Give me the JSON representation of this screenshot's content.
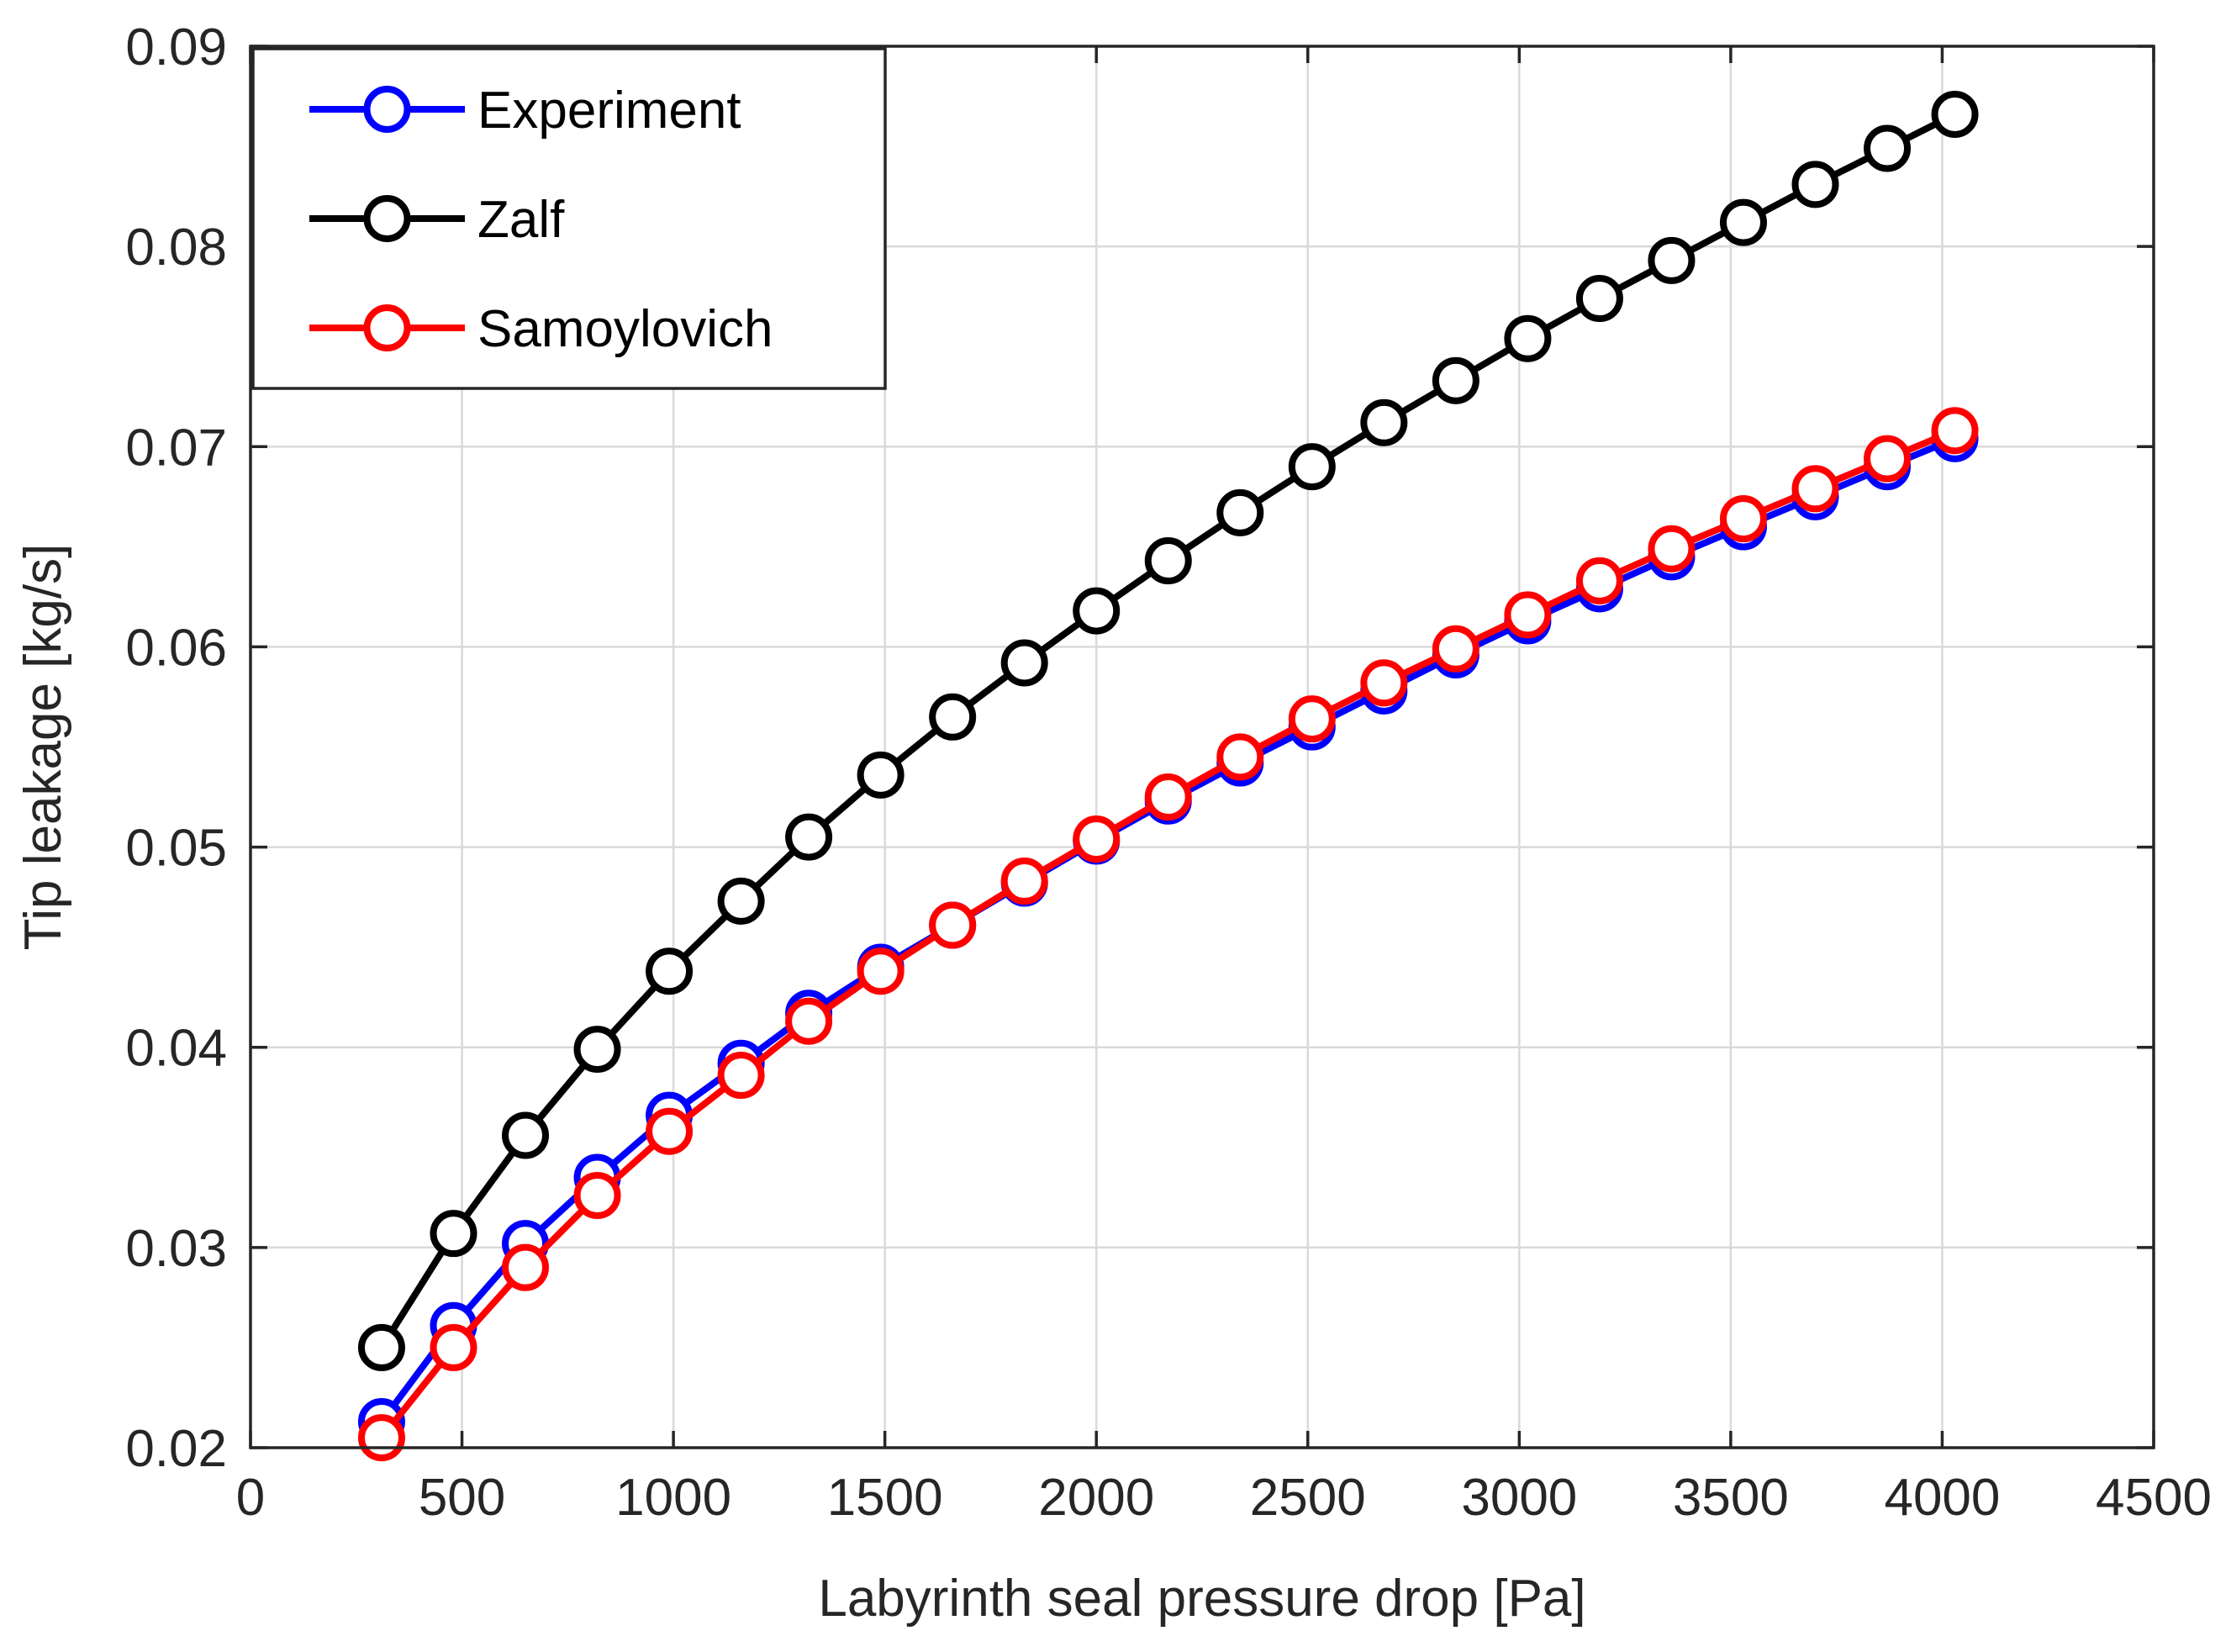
{
  "chart_data": {
    "type": "line",
    "title": "",
    "xlabel": "Labyrinth seal pressure drop [Pa]",
    "ylabel": "Tip leakage [kg/s]",
    "xlim": [
      0,
      4500
    ],
    "ylim": [
      0.02,
      0.09
    ],
    "xticks": [
      0,
      500,
      1000,
      1500,
      2000,
      2500,
      3000,
      3500,
      4000,
      4500
    ],
    "xtick_labels": [
      "0",
      "500",
      "1000",
      "1500",
      "2000",
      "2500",
      "3000",
      "3500",
      "4000",
      "4500"
    ],
    "yticks": [
      0.02,
      0.03,
      0.04,
      0.05,
      0.06,
      0.07,
      0.08,
      0.09
    ],
    "ytick_labels": [
      "0.02",
      "0.03",
      "0.04",
      "0.05",
      "0.06",
      "0.07",
      "0.08",
      "0.09"
    ],
    "grid": true,
    "legend_position": "top-left",
    "x": [
      310,
      480,
      650,
      820,
      990,
      1160,
      1320,
      1490,
      1660,
      1830,
      2000,
      2170,
      2340,
      2510,
      2680,
      2850,
      3020,
      3190,
      3360,
      3530,
      3700,
      3870,
      4030
    ],
    "series": [
      {
        "name": "Experiment",
        "color": "#0000ff",
        "values": [
          0.0213,
          0.0261,
          0.0302,
          0.0335,
          0.0366,
          0.0392,
          0.0417,
          0.044,
          0.0461,
          0.0482,
          0.0503,
          0.0523,
          0.0542,
          0.056,
          0.0578,
          0.0596,
          0.0613,
          0.0629,
          0.0645,
          0.066,
          0.0675,
          0.069,
          0.0704
        ]
      },
      {
        "name": "Zalf",
        "color": "#000000",
        "values": [
          0.025,
          0.0307,
          0.0356,
          0.0399,
          0.0438,
          0.0473,
          0.0505,
          0.0536,
          0.0565,
          0.0592,
          0.0618,
          0.0643,
          0.0667,
          0.069,
          0.0712,
          0.0733,
          0.0754,
          0.0774,
          0.0793,
          0.0812,
          0.0831,
          0.0849,
          0.0866
        ]
      },
      {
        "name": "Samoylovich",
        "color": "#ff0000",
        "values": [
          0.0205,
          0.025,
          0.029,
          0.0326,
          0.0358,
          0.0386,
          0.0413,
          0.0438,
          0.0461,
          0.0483,
          0.0504,
          0.0525,
          0.0545,
          0.0564,
          0.0582,
          0.0599,
          0.0616,
          0.0633,
          0.0649,
          0.0664,
          0.0679,
          0.0694,
          0.0708
        ]
      }
    ]
  }
}
